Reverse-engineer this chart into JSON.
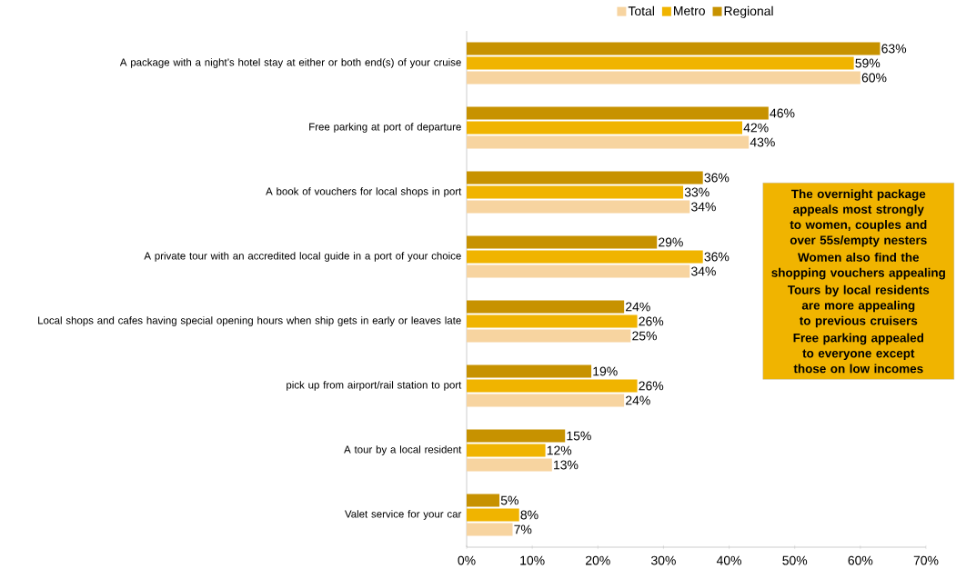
{
  "chart_data": {
    "type": "bar",
    "orientation": "horizontal",
    "legend": "top",
    "categories": [
      "A package with a night’s hotel stay at either or both end(s) of your cruise",
      "Free parking at port of departure",
      "A book of vouchers for local shops in port",
      "A private tour with an accredited local guide in a port of your choice",
      "Local shops and cafes having special opening hours when ship gets in early or leaves late",
      "pick up from airport/rail station to port",
      "A tour by a local resident",
      "Valet service for your car"
    ],
    "series": [
      {
        "name": "Total",
        "color": "#f7d4a0",
        "values": [
          60,
          43,
          34,
          34,
          25,
          24,
          13,
          7
        ],
        "value_labels": [
          "60%",
          "43%",
          "34%",
          "34%",
          "25%",
          "24%",
          "13%",
          "7%"
        ]
      },
      {
        "name": "Metro",
        "color": "#f0b400",
        "values": [
          59,
          42,
          33,
          36,
          26,
          26,
          12,
          8
        ],
        "value_labels": [
          "59%",
          "42%",
          "33%",
          "36%",
          "26%",
          "26%",
          "12%",
          "8%"
        ]
      },
      {
        "name": "Regional",
        "color": "#c79200",
        "values": [
          63,
          46,
          36,
          29,
          24,
          19,
          15,
          5
        ],
        "value_labels": [
          "63%",
          "46%",
          "36%",
          "29%",
          "24%",
          "19%",
          "15%",
          "5%"
        ]
      }
    ],
    "xlim": [
      0,
      70
    ],
    "xticks": [
      {
        "value": 0,
        "label": "0%"
      },
      {
        "value": 10,
        "label": "10%"
      },
      {
        "value": 20,
        "label": "20%"
      },
      {
        "value": 30,
        "label": "30%"
      },
      {
        "value": 40,
        "label": "40%"
      },
      {
        "value": 50,
        "label": "50%"
      },
      {
        "value": 60,
        "label": "60%"
      },
      {
        "value": 70,
        "label": "70%"
      }
    ],
    "annotations": [
      "The overnight package appeals most strongly to women, couples and over 55s/empty nesters",
      "Women also find the shopping vouchers appealing",
      "Tours by local residents are more appealing to previous cruisers",
      "Free parking appealed to everyone except those on low incomes"
    ]
  }
}
